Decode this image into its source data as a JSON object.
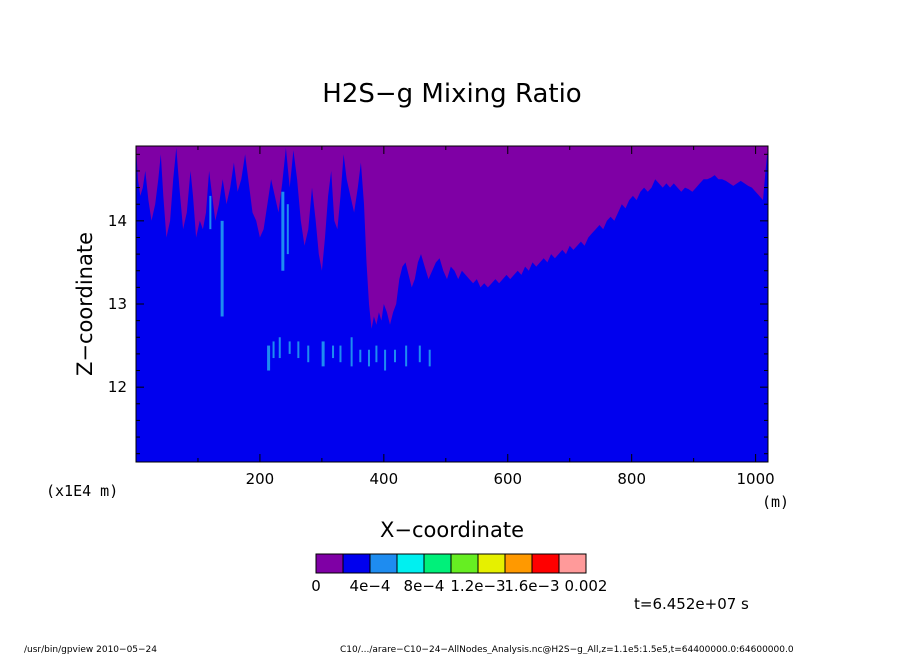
{
  "chart_data": {
    "type": "heatmap",
    "title": "H2S−g Mixing Ratio",
    "xlabel": "X−coordinate",
    "ylabel": "Z−coordinate",
    "x_unit": "(m)",
    "y_unit": "(x1E4 m)",
    "xlim": [
      0,
      1020
    ],
    "ylim": [
      11.1,
      14.9
    ],
    "x_ticks": [
      200,
      400,
      600,
      800,
      1000
    ],
    "y_ticks": [
      12,
      13,
      14
    ],
    "x_tick_labels": [
      "200",
      "400",
      "600",
      "800",
      "1000"
    ],
    "y_tick_labels": [
      "12",
      "13",
      "14"
    ],
    "legend_colors": [
      "#7f00a5",
      "#0000ee",
      "#1e8cf0",
      "#00f0f0",
      "#00f07a",
      "#66ee22",
      "#e6f000",
      "#ff9900",
      "#ff0000",
      "#ff9a9a"
    ],
    "legend_labels": [
      "0",
      "4e−4",
      "8e−4",
      "1.2e−3",
      "1.6e−3",
      "0.002"
    ],
    "background_color": "#7f00a5",
    "main_fill_color": "#0000ee",
    "patch_color": "#1e8cf0",
    "boundary": [
      [
        0,
        14.9
      ],
      [
        3,
        14.5
      ],
      [
        7,
        14.3
      ],
      [
        11,
        14.4
      ],
      [
        15,
        14.6
      ],
      [
        20,
        14.25
      ],
      [
        25,
        14.0
      ],
      [
        31,
        14.2
      ],
      [
        36,
        14.5
      ],
      [
        40,
        14.8
      ],
      [
        44,
        14.3
      ],
      [
        49,
        13.8
      ],
      [
        55,
        14.0
      ],
      [
        60,
        14.5
      ],
      [
        65,
        14.88
      ],
      [
        70,
        14.4
      ],
      [
        76,
        13.9
      ],
      [
        82,
        14.1
      ],
      [
        88,
        14.6
      ],
      [
        92,
        14.3
      ],
      [
        97,
        13.8
      ],
      [
        103,
        14.0
      ],
      [
        108,
        13.9
      ],
      [
        113,
        14.1
      ],
      [
        118,
        14.6
      ],
      [
        123,
        14.3
      ],
      [
        128,
        14.0
      ],
      [
        134,
        14.2
      ],
      [
        140,
        14.5
      ],
      [
        146,
        14.2
      ],
      [
        152,
        14.4
      ],
      [
        158,
        14.7
      ],
      [
        164,
        14.35
      ],
      [
        170,
        14.5
      ],
      [
        176,
        14.8
      ],
      [
        182,
        14.45
      ],
      [
        188,
        14.1
      ],
      [
        194,
        14.0
      ],
      [
        200,
        13.8
      ],
      [
        206,
        13.9
      ],
      [
        212,
        14.2
      ],
      [
        218,
        14.5
      ],
      [
        224,
        14.3
      ],
      [
        230,
        14.1
      ],
      [
        236,
        14.45
      ],
      [
        242,
        14.88
      ],
      [
        248,
        14.4
      ],
      [
        254,
        14.85
      ],
      [
        260,
        14.5
      ],
      [
        266,
        14.0
      ],
      [
        272,
        13.7
      ],
      [
        278,
        13.9
      ],
      [
        284,
        14.4
      ],
      [
        290,
        14.0
      ],
      [
        295,
        13.6
      ],
      [
        300,
        13.4
      ],
      [
        305,
        13.8
      ],
      [
        310,
        14.3
      ],
      [
        315,
        14.6
      ],
      [
        320,
        14.0
      ],
      [
        325,
        13.9
      ],
      [
        330,
        14.3
      ],
      [
        335,
        14.8
      ],
      [
        340,
        14.5
      ],
      [
        346,
        14.3
      ],
      [
        352,
        14.1
      ],
      [
        358,
        14.4
      ],
      [
        363,
        14.7
      ],
      [
        368,
        14.2
      ],
      [
        372,
        13.5
      ],
      [
        376,
        13.0
      ],
      [
        380,
        12.7
      ],
      [
        384,
        12.85
      ],
      [
        388,
        12.75
      ],
      [
        392,
        12.9
      ],
      [
        396,
        12.8
      ],
      [
        400,
        13.0
      ],
      [
        405,
        12.9
      ],
      [
        410,
        12.75
      ],
      [
        415,
        12.9
      ],
      [
        420,
        13.0
      ],
      [
        425,
        13.3
      ],
      [
        430,
        13.45
      ],
      [
        435,
        13.5
      ],
      [
        440,
        13.35
      ],
      [
        445,
        13.2
      ],
      [
        450,
        13.3
      ],
      [
        455,
        13.5
      ],
      [
        460,
        13.6
      ],
      [
        466,
        13.45
      ],
      [
        472,
        13.3
      ],
      [
        478,
        13.4
      ],
      [
        484,
        13.5
      ],
      [
        490,
        13.55
      ],
      [
        496,
        13.4
      ],
      [
        502,
        13.3
      ],
      [
        508,
        13.45
      ],
      [
        514,
        13.4
      ],
      [
        520,
        13.3
      ],
      [
        526,
        13.4
      ],
      [
        532,
        13.35
      ],
      [
        538,
        13.3
      ],
      [
        544,
        13.25
      ],
      [
        550,
        13.3
      ],
      [
        556,
        13.2
      ],
      [
        562,
        13.25
      ],
      [
        568,
        13.2
      ],
      [
        574,
        13.25
      ],
      [
        580,
        13.3
      ],
      [
        586,
        13.25
      ],
      [
        592,
        13.3
      ],
      [
        598,
        13.35
      ],
      [
        604,
        13.3
      ],
      [
        610,
        13.35
      ],
      [
        616,
        13.4
      ],
      [
        622,
        13.35
      ],
      [
        628,
        13.45
      ],
      [
        634,
        13.4
      ],
      [
        640,
        13.5
      ],
      [
        646,
        13.45
      ],
      [
        652,
        13.5
      ],
      [
        658,
        13.55
      ],
      [
        664,
        13.5
      ],
      [
        670,
        13.6
      ],
      [
        676,
        13.55
      ],
      [
        682,
        13.6
      ],
      [
        688,
        13.65
      ],
      [
        694,
        13.6
      ],
      [
        700,
        13.7
      ],
      [
        706,
        13.65
      ],
      [
        712,
        13.7
      ],
      [
        718,
        13.75
      ],
      [
        724,
        13.7
      ],
      [
        730,
        13.8
      ],
      [
        736,
        13.85
      ],
      [
        742,
        13.9
      ],
      [
        748,
        13.95
      ],
      [
        754,
        13.9
      ],
      [
        760,
        14.0
      ],
      [
        766,
        14.05
      ],
      [
        772,
        14.0
      ],
      [
        778,
        14.1
      ],
      [
        784,
        14.2
      ],
      [
        790,
        14.15
      ],
      [
        796,
        14.25
      ],
      [
        802,
        14.3
      ],
      [
        808,
        14.25
      ],
      [
        814,
        14.35
      ],
      [
        820,
        14.4
      ],
      [
        826,
        14.35
      ],
      [
        832,
        14.4
      ],
      [
        838,
        14.5
      ],
      [
        844,
        14.45
      ],
      [
        850,
        14.4
      ],
      [
        856,
        14.45
      ],
      [
        862,
        14.4
      ],
      [
        868,
        14.45
      ],
      [
        874,
        14.4
      ],
      [
        880,
        14.35
      ],
      [
        886,
        14.4
      ],
      [
        892,
        14.38
      ],
      [
        898,
        14.35
      ],
      [
        904,
        14.4
      ],
      [
        910,
        14.45
      ],
      [
        916,
        14.5
      ],
      [
        922,
        14.5
      ],
      [
        928,
        14.52
      ],
      [
        934,
        14.55
      ],
      [
        940,
        14.5
      ],
      [
        946,
        14.5
      ],
      [
        952,
        14.48
      ],
      [
        958,
        14.45
      ],
      [
        964,
        14.42
      ],
      [
        970,
        14.45
      ],
      [
        976,
        14.48
      ],
      [
        982,
        14.45
      ],
      [
        988,
        14.42
      ],
      [
        994,
        14.4
      ],
      [
        1000,
        14.35
      ],
      [
        1006,
        14.3
      ],
      [
        1012,
        14.25
      ],
      [
        1016,
        14.6
      ],
      [
        1020,
        14.9
      ]
    ],
    "patches": [
      {
        "x": 139,
        "y0": 12.85,
        "y1": 14.0,
        "w": 3
      },
      {
        "x": 237,
        "y0": 13.4,
        "y1": 14.35,
        "w": 3
      },
      {
        "x": 245,
        "y0": 13.6,
        "y1": 14.2,
        "w": 2
      },
      {
        "x": 120,
        "y0": 13.9,
        "y1": 14.3,
        "w": 2
      },
      {
        "x": 214,
        "y0": 12.2,
        "y1": 12.5,
        "w": 3
      },
      {
        "x": 222,
        "y0": 12.35,
        "y1": 12.55,
        "w": 2
      },
      {
        "x": 232,
        "y0": 12.35,
        "y1": 12.6,
        "w": 2
      },
      {
        "x": 248,
        "y0": 12.4,
        "y1": 12.55,
        "w": 2
      },
      {
        "x": 262,
        "y0": 12.35,
        "y1": 12.55,
        "w": 2
      },
      {
        "x": 278,
        "y0": 12.3,
        "y1": 12.5,
        "w": 2
      },
      {
        "x": 302,
        "y0": 12.25,
        "y1": 12.55,
        "w": 3
      },
      {
        "x": 318,
        "y0": 12.35,
        "y1": 12.5,
        "w": 2
      },
      {
        "x": 330,
        "y0": 12.3,
        "y1": 12.5,
        "w": 2
      },
      {
        "x": 348,
        "y0": 12.25,
        "y1": 12.6,
        "w": 2
      },
      {
        "x": 362,
        "y0": 12.3,
        "y1": 12.45,
        "w": 2
      },
      {
        "x": 376,
        "y0": 12.25,
        "y1": 12.45,
        "w": 2
      },
      {
        "x": 388,
        "y0": 12.3,
        "y1": 12.5,
        "w": 2
      },
      {
        "x": 402,
        "y0": 12.2,
        "y1": 12.45,
        "w": 2
      },
      {
        "x": 418,
        "y0": 12.3,
        "y1": 12.45,
        "w": 2
      },
      {
        "x": 436,
        "y0": 12.25,
        "y1": 12.5,
        "w": 2
      },
      {
        "x": 458,
        "y0": 12.3,
        "y1": 12.5,
        "w": 2
      },
      {
        "x": 474,
        "y0": 12.25,
        "y1": 12.45,
        "w": 2
      }
    ]
  },
  "footer": {
    "program": "/usr/bin/gpview  2010−05−24",
    "source": "C10/.../arare−C10−24−AllNodes_Analysis.nc@H2S−g_All,z=1.1e5:1.5e5,t=64400000.0:64600000.0",
    "time": "t=6.452e+07 s"
  }
}
